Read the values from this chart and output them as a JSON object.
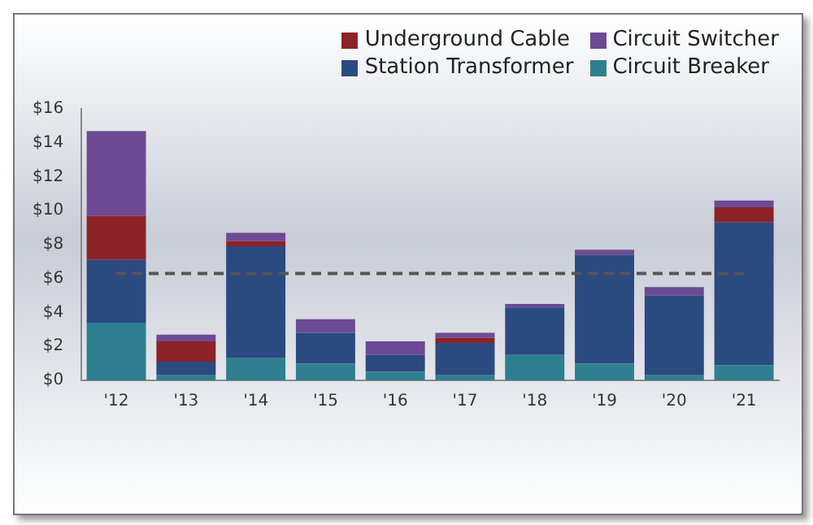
{
  "chart_data": {
    "type": "bar",
    "stacked": true,
    "categories": [
      "'12",
      "'13",
      "'14",
      "'15",
      "'16",
      "'17",
      "'18",
      "'19",
      "'20",
      "'21"
    ],
    "series": [
      {
        "name": "Circuit Breaker",
        "color": "#2e7f8f",
        "values": [
          3.4,
          0.3,
          1.3,
          1.0,
          0.5,
          0.3,
          1.5,
          1.0,
          0.3,
          0.9
        ]
      },
      {
        "name": "Station Transformer",
        "color": "#2b4a80",
        "values": [
          3.7,
          0.8,
          6.6,
          1.8,
          1.0,
          1.9,
          2.8,
          6.4,
          4.7,
          8.4
        ]
      },
      {
        "name": "Underground Cable",
        "color": "#8b2329",
        "values": [
          2.6,
          1.2,
          0.3,
          0,
          0,
          0.3,
          0,
          0,
          0,
          0.9
        ]
      },
      {
        "name": "Circuit Switcher",
        "color": "#6d4a94",
        "values": [
          5.0,
          0.4,
          0.5,
          0.8,
          0.8,
          0.3,
          0.2,
          0.3,
          0.5,
          0.4
        ]
      }
    ],
    "ylim": [
      0,
      16
    ],
    "yticks": [
      {
        "value": 0,
        "label": "$0"
      },
      {
        "value": 2,
        "label": "$2"
      },
      {
        "value": 4,
        "label": "$4"
      },
      {
        "value": 6,
        "label": "$6"
      },
      {
        "value": 8,
        "label": "$8"
      },
      {
        "value": 10,
        "label": "$10"
      },
      {
        "value": 12,
        "label": "$12"
      },
      {
        "value": 14,
        "label": "$14"
      },
      {
        "value": 16,
        "label": "$16"
      }
    ],
    "ref_lines": [
      {
        "axis": "y",
        "value": 6.3,
        "color": "#555555",
        "line_style": "dashed"
      }
    ],
    "grid": false,
    "legend": "top right"
  }
}
